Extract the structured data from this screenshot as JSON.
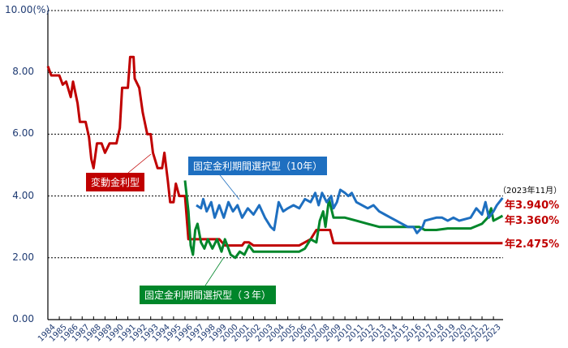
{
  "chart_data": {
    "type": "line",
    "title": "",
    "ylabel": "(%)",
    "ylim": [
      0,
      10
    ],
    "y_ticks": [
      "0.00",
      "2.00",
      "4.00",
      "6.00",
      "8.00",
      "10.00"
    ],
    "y_top_label": "10.00(%)",
    "x_ticks": [
      "1984",
      "1985",
      "1986",
      "1987",
      "1988",
      "1989",
      "1990",
      "1991",
      "1992",
      "1993",
      "1994",
      "1995",
      "1996",
      "1997",
      "1998",
      "1999",
      "2000",
      "2001",
      "2002",
      "2003",
      "2004",
      "2005",
      "2006",
      "2007",
      "2008",
      "2009",
      "2010",
      "2011",
      "2012",
      "2013",
      "2014",
      "2015",
      "2016",
      "2017",
      "2018",
      "2019",
      "2020",
      "2021",
      "2022",
      "2023"
    ],
    "grid": "horizontal dashed",
    "series": [
      {
        "name": "変動金利型",
        "color": "#c00000",
        "points": [
          [
            1984,
            8.2
          ],
          [
            1984.3,
            7.9
          ],
          [
            1985,
            7.9
          ],
          [
            1985.3,
            7.6
          ],
          [
            1985.6,
            7.7
          ],
          [
            1986,
            7.2
          ],
          [
            1986.2,
            7.7
          ],
          [
            1986.6,
            7.0
          ],
          [
            1986.8,
            6.4
          ],
          [
            1987.3,
            6.4
          ],
          [
            1987.6,
            5.9
          ],
          [
            1987.8,
            5.2
          ],
          [
            1988,
            4.9
          ],
          [
            1988.3,
            5.7
          ],
          [
            1988.7,
            5.7
          ],
          [
            1989,
            5.4
          ],
          [
            1989.4,
            5.7
          ],
          [
            1990,
            5.7
          ],
          [
            1990.3,
            6.2
          ],
          [
            1990.5,
            7.5
          ],
          [
            1991,
            7.5
          ],
          [
            1991.2,
            8.5
          ],
          [
            1991.5,
            8.5
          ],
          [
            1991.6,
            7.8
          ],
          [
            1992,
            7.5
          ],
          [
            1992.3,
            6.7
          ],
          [
            1992.7,
            6.0
          ],
          [
            1993,
            6.0
          ],
          [
            1993.2,
            5.4
          ],
          [
            1993.6,
            4.9
          ],
          [
            1994,
            4.9
          ],
          [
            1994.2,
            5.4
          ],
          [
            1994.5,
            4.5
          ],
          [
            1994.7,
            3.8
          ],
          [
            1995,
            3.8
          ],
          [
            1995.2,
            4.4
          ],
          [
            1995.5,
            4.0
          ],
          [
            1996,
            4.0
          ],
          [
            1996.3,
            2.6
          ],
          [
            1997,
            2.6
          ],
          [
            1998,
            2.6
          ],
          [
            1999,
            2.6
          ],
          [
            1999.5,
            2.4
          ],
          [
            2000,
            2.4
          ],
          [
            2001,
            2.4
          ],
          [
            2001.2,
            2.5
          ],
          [
            2001.6,
            2.5
          ],
          [
            2002,
            2.4
          ],
          [
            2006,
            2.4
          ],
          [
            2007,
            2.6
          ],
          [
            2007.5,
            2.9
          ],
          [
            2008.7,
            2.9
          ],
          [
            2009,
            2.475
          ],
          [
            2023.8,
            2.475
          ]
        ]
      },
      {
        "name": "固定金利期間選択型（3年）",
        "color": "#00862a",
        "points": [
          [
            1996,
            4.5
          ],
          [
            1996.3,
            3.5
          ],
          [
            1996.5,
            2.4
          ],
          [
            1996.7,
            2.1
          ],
          [
            1996.9,
            2.9
          ],
          [
            1997.1,
            3.1
          ],
          [
            1997.4,
            2.5
          ],
          [
            1997.7,
            2.3
          ],
          [
            1998,
            2.6
          ],
          [
            1998.4,
            2.3
          ],
          [
            1998.8,
            2.6
          ],
          [
            1999.2,
            2.2
          ],
          [
            1999.5,
            2.6
          ],
          [
            1999.8,
            2.3
          ],
          [
            2000,
            2.1
          ],
          [
            2000.4,
            2.0
          ],
          [
            2000.8,
            2.2
          ],
          [
            2001.2,
            2.1
          ],
          [
            2001.6,
            2.4
          ],
          [
            2002,
            2.2
          ],
          [
            2003,
            2.2
          ],
          [
            2005,
            2.2
          ],
          [
            2006,
            2.2
          ],
          [
            2006.5,
            2.3
          ],
          [
            2007,
            2.6
          ],
          [
            2007.5,
            2.5
          ],
          [
            2007.8,
            3.2
          ],
          [
            2008.1,
            3.5
          ],
          [
            2008.3,
            3.0
          ],
          [
            2008.6,
            3.9
          ],
          [
            2009,
            3.3
          ],
          [
            2010,
            3.3
          ],
          [
            2011,
            3.2
          ],
          [
            2012,
            3.1
          ],
          [
            2013,
            3.0
          ],
          [
            2015,
            3.0
          ],
          [
            2016.5,
            3.0
          ],
          [
            2017,
            2.9
          ],
          [
            2018,
            2.9
          ],
          [
            2019,
            2.95
          ],
          [
            2021,
            2.95
          ],
          [
            2022,
            3.1
          ],
          [
            2022.5,
            3.3
          ],
          [
            2022.8,
            3.6
          ],
          [
            2023,
            3.2
          ],
          [
            2023.5,
            3.3
          ],
          [
            2023.8,
            3.36
          ]
        ]
      },
      {
        "name": "固定金利期間選択型（10年）",
        "color": "#1e6fc0",
        "points": [
          [
            1997,
            3.7
          ],
          [
            1997.4,
            3.6
          ],
          [
            1997.6,
            3.9
          ],
          [
            1997.9,
            3.5
          ],
          [
            1998.3,
            3.8
          ],
          [
            1998.6,
            3.3
          ],
          [
            1999,
            3.7
          ],
          [
            1999.4,
            3.3
          ],
          [
            1999.8,
            3.8
          ],
          [
            2000.2,
            3.5
          ],
          [
            2000.6,
            3.7
          ],
          [
            2001,
            3.3
          ],
          [
            2001.5,
            3.6
          ],
          [
            2002,
            3.4
          ],
          [
            2002.5,
            3.7
          ],
          [
            2003,
            3.3
          ],
          [
            2003.5,
            3.0
          ],
          [
            2003.8,
            2.9
          ],
          [
            2004.2,
            3.8
          ],
          [
            2004.6,
            3.5
          ],
          [
            2005,
            3.6
          ],
          [
            2005.5,
            3.7
          ],
          [
            2006,
            3.6
          ],
          [
            2006.5,
            3.9
          ],
          [
            2007,
            3.8
          ],
          [
            2007.4,
            4.1
          ],
          [
            2007.7,
            3.7
          ],
          [
            2008,
            4.1
          ],
          [
            2008.4,
            3.8
          ],
          [
            2008.8,
            4.0
          ],
          [
            2009,
            3.6
          ],
          [
            2009.3,
            3.8
          ],
          [
            2009.6,
            4.2
          ],
          [
            2010,
            4.1
          ],
          [
            2010.3,
            4.0
          ],
          [
            2010.6,
            4.1
          ],
          [
            2011,
            3.8
          ],
          [
            2012,
            3.6
          ],
          [
            2012.5,
            3.7
          ],
          [
            2013,
            3.5
          ],
          [
            2013.5,
            3.4
          ],
          [
            2014,
            3.3
          ],
          [
            2014.5,
            3.2
          ],
          [
            2015,
            3.1
          ],
          [
            2015.5,
            3.0
          ],
          [
            2016,
            3.0
          ],
          [
            2016.3,
            2.8
          ],
          [
            2016.8,
            3.0
          ],
          [
            2017,
            3.2
          ],
          [
            2018,
            3.3
          ],
          [
            2018.5,
            3.3
          ],
          [
            2019,
            3.2
          ],
          [
            2019.5,
            3.3
          ],
          [
            2020,
            3.2
          ],
          [
            2021,
            3.3
          ],
          [
            2021.5,
            3.6
          ],
          [
            2022,
            3.4
          ],
          [
            2022.3,
            3.8
          ],
          [
            2022.6,
            3.3
          ],
          [
            2023,
            3.5
          ],
          [
            2023.3,
            3.7
          ],
          [
            2023.8,
            3.94
          ]
        ]
      }
    ],
    "annotations": {
      "date_note": "（2023年11月）",
      "end_values": [
        {
          "series": "固定金利期間選択型（10年）",
          "text": "年3.940%"
        },
        {
          "series": "固定金利期間選択型（3年）",
          "text": "年3.360%"
        },
        {
          "series": "変動金利型",
          "text": "年2.475%"
        }
      ],
      "labels": [
        {
          "text": "変動金利型",
          "color": "#c00000"
        },
        {
          "text": "固定金利期間選択型（10年）",
          "color": "#1e6fc0"
        },
        {
          "text": "固定金利期間選択型（３年）",
          "color": "#00862a"
        }
      ]
    }
  }
}
